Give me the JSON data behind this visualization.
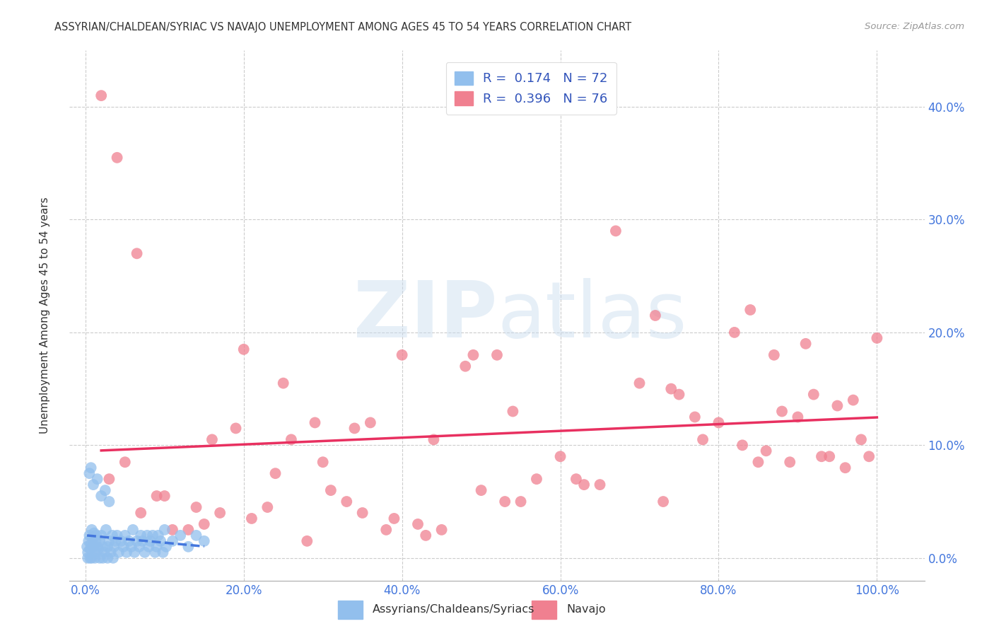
{
  "title": "ASSYRIAN/CHALDEAN/SYRIAC VS NAVAJO UNEMPLOYMENT AMONG AGES 45 TO 54 YEARS CORRELATION CHART",
  "source": "Source: ZipAtlas.com",
  "xlabel_vals": [
    0,
    20,
    40,
    60,
    80,
    100
  ],
  "ylabel": "Unemployment Among Ages 45 to 54 years",
  "ylabel_vals": [
    0,
    10,
    20,
    30,
    40
  ],
  "xlim": [
    -2,
    106
  ],
  "ylim": [
    -2,
    45
  ],
  "title_color": "#333333",
  "source_color": "#999999",
  "blue_color": "#92BFED",
  "pink_color": "#F08090",
  "blue_line_color": "#4477DD",
  "blue_line_dash": true,
  "pink_line_color": "#E83060",
  "tick_label_color": "#4477DD",
  "legend_R_blue": "0.174",
  "legend_N_blue": "72",
  "legend_R_pink": "0.396",
  "legend_N_pink": "76",
  "legend_label_blue": "Assyrians/Chaldeans/Syriacs",
  "legend_label_pink": "Navajo",
  "blue_scatter_x": [
    0.2,
    0.3,
    0.4,
    0.5,
    0.6,
    0.7,
    0.8,
    0.9,
    1.0,
    1.1,
    1.2,
    1.3,
    1.4,
    1.5,
    1.6,
    1.8,
    2.0,
    2.2,
    2.4,
    2.6,
    2.8,
    3.0,
    3.2,
    3.4,
    3.6,
    3.8,
    4.0,
    4.2,
    4.5,
    4.8,
    5.0,
    5.2,
    5.5,
    5.8,
    6.0,
    6.2,
    6.5,
    6.8,
    7.0,
    7.2,
    7.5,
    7.8,
    8.0,
    8.2,
    8.5,
    8.8,
    9.0,
    9.2,
    9.5,
    9.8,
    10.0,
    10.2,
    11.0,
    12.0,
    13.0,
    14.0,
    15.0,
    0.5,
    0.7,
    1.0,
    1.5,
    2.0,
    2.5,
    3.0,
    0.3,
    0.6,
    0.8,
    1.2,
    1.8,
    2.2,
    2.8,
    3.5
  ],
  "blue_scatter_y": [
    1.0,
    0.5,
    1.5,
    2.0,
    0.8,
    1.2,
    2.5,
    1.8,
    1.0,
    2.2,
    0.5,
    1.5,
    2.0,
    1.0,
    0.8,
    1.5,
    2.0,
    1.0,
    0.5,
    2.5,
    1.0,
    1.5,
    0.5,
    2.0,
    1.0,
    1.5,
    2.0,
    0.5,
    1.5,
    1.0,
    2.0,
    0.5,
    1.5,
    1.0,
    2.5,
    0.5,
    1.5,
    1.0,
    2.0,
    1.5,
    0.5,
    2.0,
    1.0,
    1.5,
    2.0,
    0.5,
    1.0,
    2.0,
    1.5,
    0.5,
    2.5,
    1.0,
    1.5,
    2.0,
    1.0,
    2.0,
    1.5,
    7.5,
    8.0,
    6.5,
    7.0,
    5.5,
    6.0,
    5.0,
    0.0,
    0.0,
    0.0,
    0.0,
    0.0,
    0.0,
    0.0,
    0.0
  ],
  "pink_scatter_x": [
    2.0,
    4.0,
    6.5,
    10.0,
    13.0,
    15.0,
    17.0,
    20.0,
    23.0,
    25.0,
    28.0,
    30.0,
    33.0,
    35.0,
    38.0,
    40.0,
    42.0,
    45.0,
    48.0,
    50.0,
    52.0,
    55.0,
    57.0,
    60.0,
    62.0,
    65.0,
    67.0,
    70.0,
    72.0,
    74.0,
    75.0,
    77.0,
    78.0,
    80.0,
    82.0,
    84.0,
    85.0,
    87.0,
    88.0,
    90.0,
    91.0,
    92.0,
    93.0,
    95.0,
    97.0,
    98.0,
    100.0,
    3.0,
    7.0,
    11.0,
    16.0,
    21.0,
    26.0,
    31.0,
    36.0,
    43.0,
    53.0,
    63.0,
    73.0,
    83.0,
    86.0,
    89.0,
    94.0,
    96.0,
    99.0,
    5.0,
    9.0,
    14.0,
    19.0,
    24.0,
    29.0,
    34.0,
    39.0,
    44.0,
    49.0,
    54.0
  ],
  "pink_scatter_y": [
    41.0,
    35.5,
    27.0,
    5.5,
    2.5,
    3.0,
    4.0,
    18.5,
    4.5,
    15.5,
    1.5,
    8.5,
    5.0,
    4.0,
    2.5,
    18.0,
    3.0,
    2.5,
    17.0,
    6.0,
    18.0,
    5.0,
    7.0,
    9.0,
    7.0,
    6.5,
    29.0,
    15.5,
    21.5,
    15.0,
    14.5,
    12.5,
    10.5,
    12.0,
    20.0,
    22.0,
    8.5,
    18.0,
    13.0,
    12.5,
    19.0,
    14.5,
    9.0,
    13.5,
    14.0,
    10.5,
    19.5,
    7.0,
    4.0,
    2.5,
    10.5,
    3.5,
    10.5,
    6.0,
    12.0,
    2.0,
    5.0,
    6.5,
    5.0,
    10.0,
    9.5,
    8.5,
    9.0,
    8.0,
    9.0,
    8.5,
    5.5,
    4.5,
    11.5,
    7.5,
    12.0,
    11.5,
    3.5,
    10.5,
    18.0,
    13.0
  ]
}
